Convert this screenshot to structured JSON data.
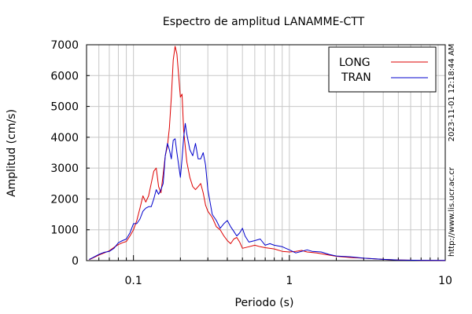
{
  "chart_data": {
    "type": "line",
    "title": "Espectro de amplitud LANAMME-CTT",
    "xlabel": "Periodo (s)",
    "ylabel": "Amplitud (cm/s)",
    "x_scale": "log",
    "xlim": [
      0.05,
      10
    ],
    "ylim": [
      0,
      7000
    ],
    "x_ticks": [
      {
        "value": 0.1,
        "label": "0.1"
      },
      {
        "value": 1,
        "label": "1"
      },
      {
        "value": 10,
        "label": "10"
      }
    ],
    "y_ticks": [
      0,
      1000,
      2000,
      3000,
      4000,
      5000,
      6000,
      7000
    ],
    "grid": true,
    "legend_position": "top-right",
    "series": [
      {
        "name": "LONG",
        "color": "#dd0000",
        "points": [
          [
            0.052,
            30
          ],
          [
            0.055,
            90
          ],
          [
            0.06,
            180
          ],
          [
            0.065,
            250
          ],
          [
            0.07,
            320
          ],
          [
            0.075,
            430
          ],
          [
            0.08,
            520
          ],
          [
            0.085,
            580
          ],
          [
            0.09,
            620
          ],
          [
            0.095,
            800
          ],
          [
            0.1,
            1000
          ],
          [
            0.105,
            1300
          ],
          [
            0.11,
            1700
          ],
          [
            0.115,
            2100
          ],
          [
            0.12,
            1900
          ],
          [
            0.125,
            2100
          ],
          [
            0.13,
            2500
          ],
          [
            0.135,
            2900
          ],
          [
            0.14,
            3000
          ],
          [
            0.145,
            2400
          ],
          [
            0.15,
            2200
          ],
          [
            0.155,
            2800
          ],
          [
            0.16,
            3400
          ],
          [
            0.165,
            3700
          ],
          [
            0.17,
            4300
          ],
          [
            0.175,
            5300
          ],
          [
            0.18,
            6500
          ],
          [
            0.185,
            6950
          ],
          [
            0.19,
            6700
          ],
          [
            0.195,
            6000
          ],
          [
            0.2,
            5300
          ],
          [
            0.205,
            5400
          ],
          [
            0.21,
            4200
          ],
          [
            0.22,
            3200
          ],
          [
            0.23,
            2700
          ],
          [
            0.24,
            2400
          ],
          [
            0.25,
            2300
          ],
          [
            0.26,
            2400
          ],
          [
            0.27,
            2500
          ],
          [
            0.28,
            2200
          ],
          [
            0.29,
            1800
          ],
          [
            0.3,
            1600
          ],
          [
            0.32,
            1400
          ],
          [
            0.34,
            1100
          ],
          [
            0.36,
            1000
          ],
          [
            0.38,
            800
          ],
          [
            0.4,
            650
          ],
          [
            0.42,
            550
          ],
          [
            0.44,
            700
          ],
          [
            0.46,
            750
          ],
          [
            0.48,
            600
          ],
          [
            0.5,
            400
          ],
          [
            0.55,
            450
          ],
          [
            0.6,
            500
          ],
          [
            0.65,
            450
          ],
          [
            0.7,
            420
          ],
          [
            0.8,
            380
          ],
          [
            0.9,
            300
          ],
          [
            1.0,
            280
          ],
          [
            1.1,
            300
          ],
          [
            1.2,
            330
          ],
          [
            1.3,
            280
          ],
          [
            1.5,
            250
          ],
          [
            1.7,
            200
          ],
          [
            2.0,
            140
          ],
          [
            2.5,
            100
          ],
          [
            3.0,
            80
          ],
          [
            4.0,
            40
          ],
          [
            5.0,
            20
          ],
          [
            7.0,
            10
          ],
          [
            10.0,
            5
          ]
        ]
      },
      {
        "name": "TRAN",
        "color": "#0000cc",
        "points": [
          [
            0.052,
            40
          ],
          [
            0.055,
            100
          ],
          [
            0.06,
            200
          ],
          [
            0.065,
            270
          ],
          [
            0.07,
            300
          ],
          [
            0.075,
            400
          ],
          [
            0.08,
            580
          ],
          [
            0.085,
            650
          ],
          [
            0.09,
            700
          ],
          [
            0.095,
            900
          ],
          [
            0.1,
            1200
          ],
          [
            0.105,
            1200
          ],
          [
            0.11,
            1350
          ],
          [
            0.115,
            1600
          ],
          [
            0.12,
            1700
          ],
          [
            0.125,
            1750
          ],
          [
            0.13,
            1750
          ],
          [
            0.135,
            2000
          ],
          [
            0.14,
            2300
          ],
          [
            0.145,
            2150
          ],
          [
            0.15,
            2300
          ],
          [
            0.155,
            2500
          ],
          [
            0.16,
            3400
          ],
          [
            0.165,
            3800
          ],
          [
            0.17,
            3600
          ],
          [
            0.175,
            3300
          ],
          [
            0.18,
            3900
          ],
          [
            0.185,
            3950
          ],
          [
            0.19,
            3500
          ],
          [
            0.195,
            3100
          ],
          [
            0.2,
            2700
          ],
          [
            0.205,
            3300
          ],
          [
            0.21,
            4000
          ],
          [
            0.215,
            4450
          ],
          [
            0.22,
            4100
          ],
          [
            0.23,
            3600
          ],
          [
            0.24,
            3400
          ],
          [
            0.25,
            3800
          ],
          [
            0.26,
            3300
          ],
          [
            0.27,
            3300
          ],
          [
            0.28,
            3500
          ],
          [
            0.29,
            3100
          ],
          [
            0.3,
            2300
          ],
          [
            0.32,
            1500
          ],
          [
            0.34,
            1300
          ],
          [
            0.36,
            1050
          ],
          [
            0.38,
            1200
          ],
          [
            0.4,
            1300
          ],
          [
            0.42,
            1100
          ],
          [
            0.44,
            950
          ],
          [
            0.46,
            800
          ],
          [
            0.48,
            900
          ],
          [
            0.5,
            1050
          ],
          [
            0.52,
            800
          ],
          [
            0.55,
            600
          ],
          [
            0.6,
            650
          ],
          [
            0.65,
            700
          ],
          [
            0.7,
            500
          ],
          [
            0.75,
            550
          ],
          [
            0.8,
            500
          ],
          [
            0.9,
            450
          ],
          [
            1.0,
            350
          ],
          [
            1.1,
            250
          ],
          [
            1.2,
            300
          ],
          [
            1.3,
            350
          ],
          [
            1.4,
            300
          ],
          [
            1.6,
            280
          ],
          [
            1.8,
            200
          ],
          [
            2.0,
            150
          ],
          [
            2.5,
            120
          ],
          [
            3.0,
            80
          ],
          [
            4.0,
            40
          ],
          [
            5.0,
            20
          ],
          [
            7.0,
            10
          ],
          [
            10.0,
            5
          ]
        ]
      }
    ]
  },
  "side_labels": {
    "timestamp": "2023-11-01 12:18:44 AM",
    "url": "http://www.lis.ucr.ac.cr"
  }
}
